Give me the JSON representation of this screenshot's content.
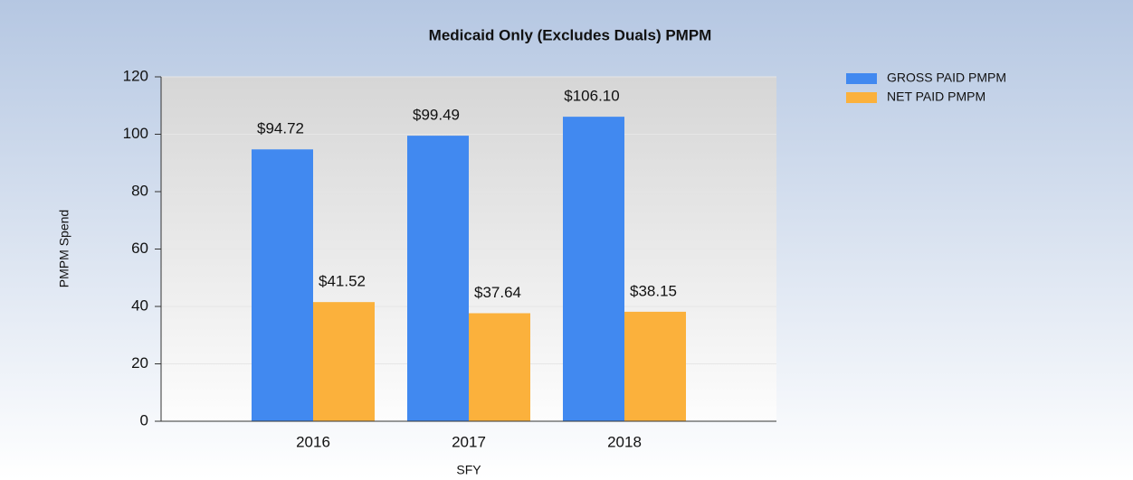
{
  "chart_data": {
    "type": "bar",
    "title": "Medicaid Only (Excludes Duals) PMPM",
    "x_label": "SFY",
    "y_label": "PMPM Spend",
    "categories": [
      "2016",
      "2017",
      "2018"
    ],
    "series": [
      {
        "name": "GROSS PAID PMPM",
        "color": "#4189f0",
        "values": [
          94.72,
          99.49,
          106.1
        ],
        "value_labels": [
          "$94.72",
          "$99.49",
          "$106.10"
        ]
      },
      {
        "name": "NET PAID PMPM",
        "color": "#fbb13c",
        "values": [
          41.52,
          37.64,
          38.15
        ],
        "value_labels": [
          "$41.52",
          "$37.64",
          "$38.15"
        ]
      }
    ],
    "ylim": [
      0,
      120
    ],
    "yticks": [
      0,
      20,
      40,
      60,
      80,
      100,
      120
    ],
    "grid": true,
    "legend": "top-right"
  }
}
